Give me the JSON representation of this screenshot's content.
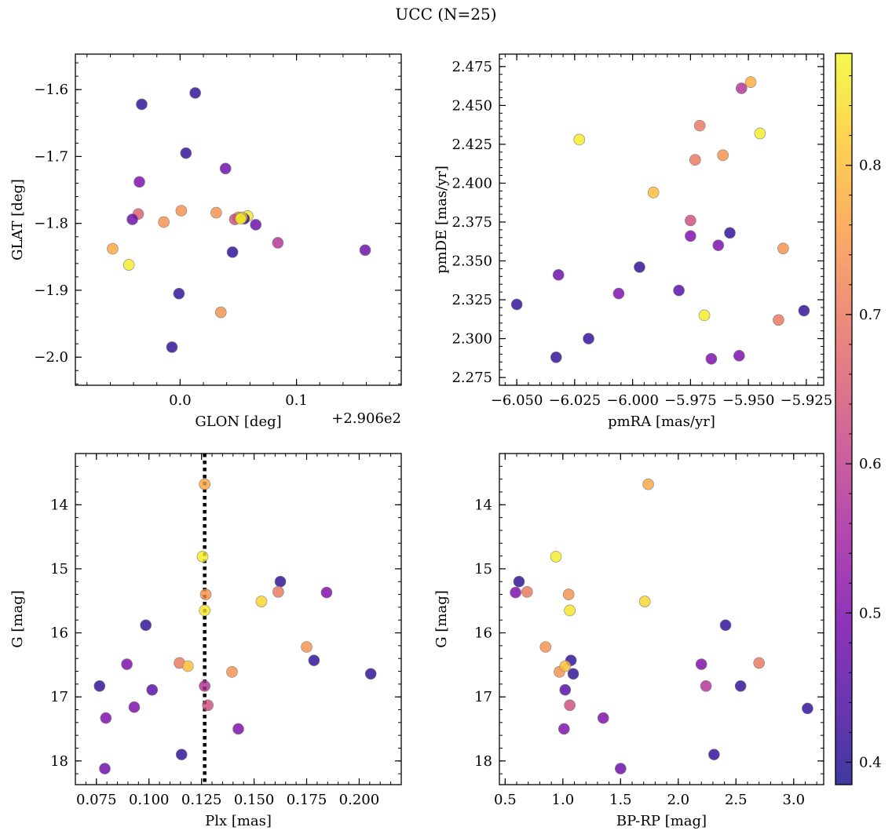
{
  "chart_data": [
    {
      "type": "scatter",
      "xlabel": "GLON [deg]",
      "ylabel": "GLAT [deg]",
      "offset_label": "+2.906e2",
      "xlim": [
        -0.09,
        0.19
      ],
      "ylim": [
        -2.042,
        -1.547
      ],
      "x_ticks": [
        0.0,
        0.1
      ],
      "x_tick_labels": [
        "0.0",
        "0.1"
      ],
      "y_ticks": [
        -1.6,
        -1.7,
        -1.8,
        -1.9,
        -2.0
      ],
      "y_tick_labels": [
        "−1.6",
        "−1.7",
        "−1.8",
        "−1.9",
        "−2.0"
      ],
      "x_minor_step": 0.02,
      "y_minor_step": 0.02,
      "x": [
        -0.033,
        0.013,
        0.005,
        0.039,
        -0.035,
        0.001,
        0.031,
        -0.036,
        0.05,
        0.058,
        0.047,
        0.055,
        -0.041,
        -0.014,
        0.065,
        0.084,
        0.159,
        -0.058,
        -0.044,
        0.045,
        -0.001,
        0.035,
        -0.007,
        0.053,
        0.052
      ],
      "y": [
        -1.622,
        -1.605,
        -1.695,
        -1.718,
        -1.738,
        -1.781,
        -1.784,
        -1.786,
        -1.791,
        -1.789,
        -1.794,
        -1.793,
        -1.794,
        -1.798,
        -1.802,
        -1.829,
        -1.84,
        -1.838,
        -1.862,
        -1.843,
        -1.905,
        -1.933,
        -1.985,
        -1.791,
        -1.793
      ],
      "color_values": [
        0.41,
        0.41,
        0.41,
        0.48,
        0.5,
        0.74,
        0.74,
        0.66,
        0.74,
        0.85,
        0.63,
        0.41,
        0.48,
        0.74,
        0.48,
        0.58,
        0.48,
        0.77,
        0.86,
        0.41,
        0.41,
        0.74,
        0.41,
        0.83,
        0.86
      ]
    },
    {
      "type": "scatter",
      "xlabel": "pmRA [mas/yr]",
      "ylabel": "pmDE [mas/yr]",
      "xlim": [
        -6.0575,
        -5.9175
      ],
      "ylim": [
        2.27,
        2.483
      ],
      "x_ticks": [
        -6.05,
        -6.025,
        -6.0,
        -5.975,
        -5.95,
        -5.925
      ],
      "x_tick_labels": [
        "−6.050",
        "−6.025",
        "−6.000",
        "−5.975",
        "−5.950",
        "−5.925"
      ],
      "y_ticks": [
        2.275,
        2.3,
        2.325,
        2.35,
        2.375,
        2.4,
        2.425,
        2.45,
        2.475
      ],
      "y_tick_labels": [
        "2.275",
        "2.300",
        "2.325",
        "2.350",
        "2.375",
        "2.400",
        "2.425",
        "2.450",
        "2.475"
      ],
      "x_minor_step": 0.005,
      "y_minor_step": 0.005,
      "x": [
        -6.05,
        -6.032,
        -6.023,
        -6.019,
        -6.006,
        -5.997,
        -5.991,
        -5.98,
        -5.973,
        -5.971,
        -5.975,
        -5.975,
        -5.963,
        -5.966,
        -5.958,
        -5.961,
        -5.949,
        -5.953,
        -5.954,
        -5.945,
        -5.937,
        -5.935,
        -5.926,
        -6.033,
        -5.969
      ],
      "y": [
        2.322,
        2.341,
        2.428,
        2.3,
        2.329,
        2.346,
        2.394,
        2.331,
        2.415,
        2.437,
        2.376,
        2.366,
        2.36,
        2.287,
        2.368,
        2.418,
        2.465,
        2.461,
        2.289,
        2.432,
        2.312,
        2.358,
        2.318,
        2.288,
        2.315
      ],
      "color_values": [
        0.41,
        0.48,
        0.86,
        0.41,
        0.5,
        0.41,
        0.8,
        0.45,
        0.7,
        0.7,
        0.63,
        0.5,
        0.5,
        0.5,
        0.41,
        0.74,
        0.78,
        0.58,
        0.5,
        0.86,
        0.7,
        0.74,
        0.41,
        0.41,
        0.86
      ]
    },
    {
      "type": "scatter",
      "xlabel": "Plx [mas]",
      "ylabel": "G [mag]",
      "y_inverted": true,
      "xlim": [
        0.065,
        0.22
      ],
      "ylim": [
        18.37,
        13.2
      ],
      "x_ticks": [
        0.075,
        0.1,
        0.125,
        0.15,
        0.175,
        0.2
      ],
      "x_tick_labels": [
        "0.075",
        "0.100",
        "0.125",
        "0.150",
        "0.175",
        "0.200"
      ],
      "y_ticks": [
        14,
        15,
        16,
        17,
        18
      ],
      "y_tick_labels": [
        "14",
        "15",
        "16",
        "17",
        "18"
      ],
      "x_minor_step": 0.005,
      "y_minor_step": 0.2,
      "vline": {
        "x": 0.1265,
        "style": "dotted"
      },
      "x": [
        0.1265,
        0.1255,
        0.127,
        0.1265,
        0.1625,
        0.1845,
        0.1535,
        0.1615,
        0.0985,
        0.175,
        0.1785,
        0.1145,
        0.1185,
        0.0895,
        0.1395,
        0.2055,
        0.0765,
        0.1015,
        0.128,
        0.093,
        0.0795,
        0.1425,
        0.1155,
        0.079,
        0.1265
      ],
      "y": [
        13.68,
        14.81,
        15.4,
        15.65,
        15.2,
        15.37,
        15.51,
        15.36,
        15.88,
        16.22,
        16.43,
        16.47,
        16.52,
        16.49,
        16.61,
        16.64,
        16.83,
        16.89,
        17.13,
        17.16,
        17.33,
        17.5,
        17.9,
        18.12,
        16.83
      ],
      "color_values": [
        0.77,
        0.86,
        0.74,
        0.85,
        0.41,
        0.5,
        0.83,
        0.7,
        0.41,
        0.74,
        0.41,
        0.7,
        0.8,
        0.5,
        0.74,
        0.41,
        0.41,
        0.45,
        0.63,
        0.5,
        0.5,
        0.5,
        0.41,
        0.48,
        0.58
      ]
    },
    {
      "type": "scatter",
      "xlabel": "BP-RP [mag]",
      "ylabel": "G [mag]",
      "y_inverted": true,
      "xlim": [
        0.45,
        3.26
      ],
      "ylim": [
        18.37,
        13.2
      ],
      "x_ticks": [
        0.5,
        1.0,
        1.5,
        2.0,
        2.5,
        3.0
      ],
      "x_tick_labels": [
        "0.5",
        "1.0",
        "1.5",
        "2.0",
        "2.5",
        "3.0"
      ],
      "y_ticks": [
        14,
        15,
        16,
        17,
        18
      ],
      "y_tick_labels": [
        "14",
        "15",
        "16",
        "17",
        "18"
      ],
      "x_minor_step": 0.1,
      "y_minor_step": 0.2,
      "x": [
        1.74,
        0.94,
        1.05,
        1.06,
        0.62,
        0.59,
        0.69,
        1.71,
        2.41,
        0.85,
        1.07,
        2.7,
        0.97,
        1.02,
        1.09,
        2.2,
        2.54,
        1.02,
        2.24,
        1.06,
        3.12,
        1.35,
        1.01,
        2.31,
        1.5
      ],
      "y": [
        13.68,
        14.81,
        15.4,
        15.65,
        15.2,
        15.37,
        15.36,
        15.51,
        15.88,
        16.22,
        16.43,
        16.47,
        16.61,
        16.52,
        16.64,
        16.49,
        16.83,
        16.89,
        16.83,
        17.13,
        17.18,
        17.33,
        17.5,
        17.9,
        18.12
      ],
      "color_values": [
        0.77,
        0.86,
        0.74,
        0.85,
        0.41,
        0.5,
        0.7,
        0.83,
        0.41,
        0.74,
        0.41,
        0.7,
        0.74,
        0.8,
        0.41,
        0.5,
        0.41,
        0.45,
        0.58,
        0.63,
        0.41,
        0.5,
        0.5,
        0.41,
        0.48
      ]
    }
  ],
  "suptitle": "UCC (N=25)",
  "colorbar": {
    "colormap": "plasma",
    "range": [
      0.385,
      0.875
    ],
    "ticks": [
      0.4,
      0.5,
      0.6,
      0.7,
      0.8
    ],
    "tick_labels": [
      "0.4",
      "0.5",
      "0.6",
      "0.7",
      "0.8"
    ],
    "minor_step": 0.02,
    "stops": [
      "#0d0887",
      "#46039f",
      "#7201a8",
      "#9c179e",
      "#bd3786",
      "#d8576b",
      "#ed7953",
      "#fb9f3a",
      "#fdca26",
      "#f0f921"
    ]
  },
  "marker_alpha": 0.8,
  "marker_edge_color": "#808080"
}
